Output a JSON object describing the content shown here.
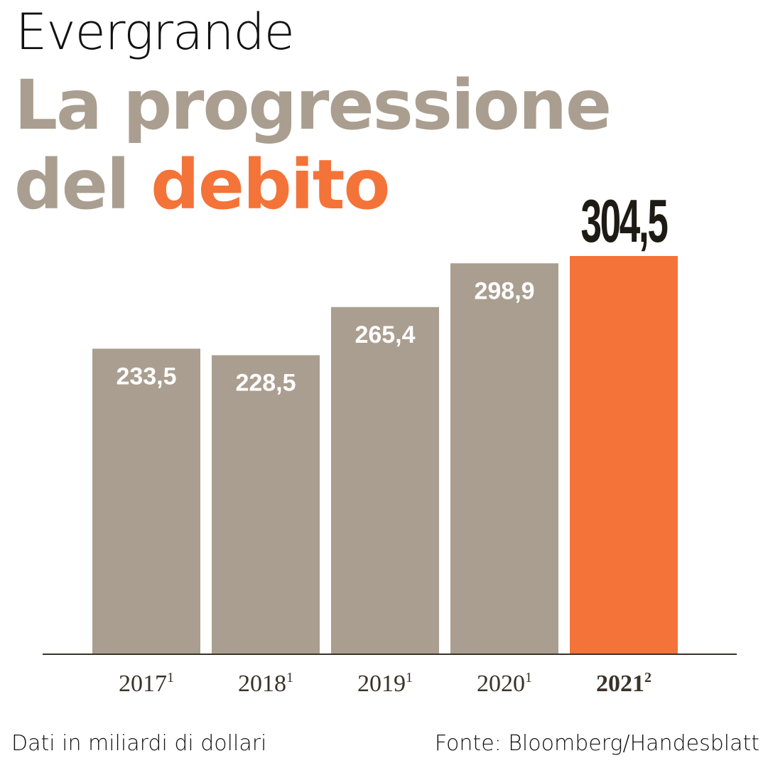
{
  "header": {
    "kicker": "Evergrande",
    "title_line1": "La progressione",
    "title_line2_plain": "del ",
    "title_line2_accent": "debito"
  },
  "colors": {
    "bar": "#aa9e90",
    "highlight": "#f47338",
    "axis": "#3a3328",
    "tick_text": "#3a3328",
    "value_text": "#ffffff",
    "highlight_value_text": "#1e1a14"
  },
  "chart_data": {
    "type": "bar",
    "categories": [
      "2017",
      "2018",
      "2019",
      "2020",
      "2021"
    ],
    "category_notes": [
      "1",
      "1",
      "1",
      "1",
      "2"
    ],
    "values": [
      233.5,
      228.5,
      265.4,
      298.9,
      304.5
    ],
    "value_labels": [
      "233,5",
      "228,5",
      "265,4",
      "298,9",
      "304,5"
    ],
    "highlight_index": 4,
    "ylim": [
      0,
      304.5
    ],
    "grid": false,
    "legend": "none"
  },
  "footer": {
    "note": "Dati in miliardi di dollari",
    "source": "Fonte: Bloomberg/Handesblatt"
  }
}
